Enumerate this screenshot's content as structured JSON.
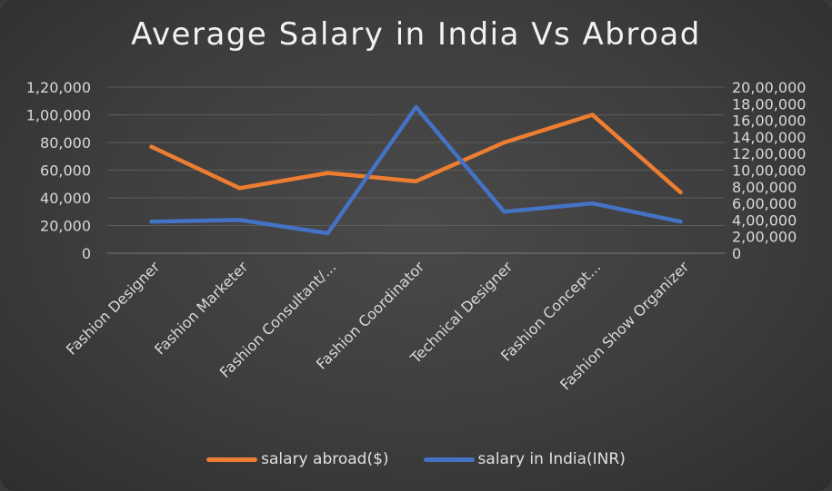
{
  "chart_data": {
    "type": "line",
    "title": "Average Salary in India Vs Abroad",
    "categories": [
      "Fashion Designer",
      "Fashion Marketer",
      "Fashion Consultant/...",
      "Fashion Coordinator",
      "Technical Designer",
      "Fashion Concept...",
      "Fashion Show Organizer"
    ],
    "series": [
      {
        "name": "salary abroad($)",
        "axis": "left",
        "color": "#ed7d31",
        "values": [
          77000,
          47000,
          58000,
          52000,
          80000,
          100000,
          44000
        ]
      },
      {
        "name": "salary in India(INR)",
        "axis": "right",
        "color": "#4472c4",
        "values": [
          380000,
          400000,
          240000,
          1760000,
          500000,
          600000,
          380000
        ]
      }
    ],
    "y_left": {
      "min": 0,
      "max": 120000,
      "step": 20000,
      "tick_labels": [
        "0",
        "20,000",
        "40,000",
        "60,000",
        "80,000",
        "1,00,000",
        "1,20,000"
      ]
    },
    "y_right": {
      "min": 0,
      "max": 2000000,
      "step": 200000,
      "tick_labels": [
        "0",
        "2,00,000",
        "4,00,000",
        "6,00,000",
        "8,00,000",
        "10,00,000",
        "12,00,000",
        "14,00,000",
        "16,00,000",
        "18,00,000",
        "20,00,000"
      ]
    },
    "grid": true,
    "legend": "bottom"
  }
}
